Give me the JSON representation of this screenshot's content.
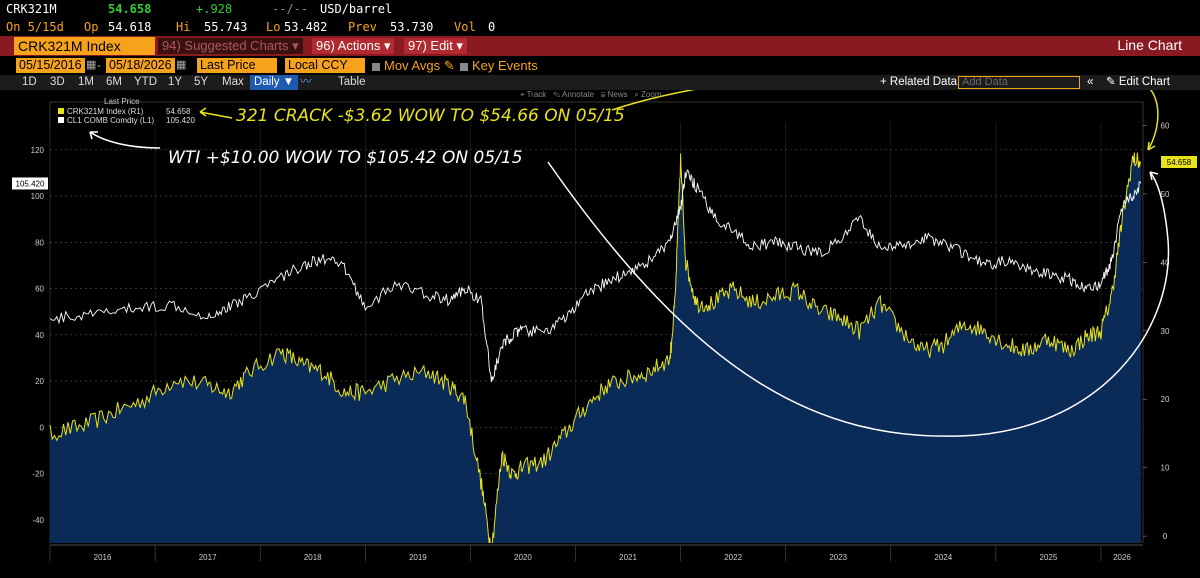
{
  "header": {
    "ticker": "CRK321M",
    "last": "54.658",
    "change": "+.928",
    "range_sep": "--/--",
    "unit": "USD/barrel",
    "on_date": "On 5/15d",
    "op_label": "Op",
    "op_value": "54.618",
    "hi_label": "Hi",
    "hi_value": "55.743",
    "lo_label": "Lo",
    "lo_value": "53.482",
    "prev_label": "Prev",
    "prev_value": "53.730",
    "vol_label": "Vol",
    "vol_value": "0"
  },
  "toolbar": {
    "index_name": "CRK321M Index",
    "suggested": "94) Suggested Charts",
    "actions": "96) Actions",
    "edit": "97) Edit",
    "line_chart": "Line Chart"
  },
  "daterow": {
    "start": "05/15/2016",
    "end": "05/18/2026",
    "field": "Last Price",
    "currency": "Local CCY",
    "mov_avgs": "Mov Avgs",
    "key_events": "Key Events"
  },
  "periods": [
    "1D",
    "3D",
    "1M",
    "6M",
    "YTD",
    "1Y",
    "5Y",
    "Max"
  ],
  "period_selected": "Daily",
  "table_label": "Table",
  "related_data": "+ Related Data",
  "add_data_placeholder": "Add Data",
  "edit_chart": "Edit Chart",
  "chart_tools": [
    "Track",
    "Annotate",
    "News",
    "Zoom"
  ],
  "colors": {
    "accent": "#f7a21b",
    "crack_series": "#e8e21a",
    "wti_series": "#ffffff",
    "area_fill": "#0a2a57",
    "redbar": "#8a1a22"
  },
  "chart_data": {
    "type": "line",
    "title": "",
    "legend_header": "Last Price",
    "x_ticks": [
      "2016",
      "2017",
      "2018",
      "2019",
      "2020",
      "2021",
      "2022",
      "2023",
      "2024",
      "2025",
      "2026"
    ],
    "xlim": [
      2016.0,
      2026.4
    ],
    "left_axis": {
      "ticks": [
        -40,
        -20,
        0,
        20,
        40,
        60,
        80,
        100,
        120
      ],
      "ylim": [
        -50,
        132
      ],
      "last_label": "105.420"
    },
    "right_axis": {
      "ticks": [
        0,
        10,
        20,
        30,
        40,
        50,
        60
      ],
      "ylim": [
        -1,
        60.5
      ],
      "last_label": "54.658"
    },
    "series": [
      {
        "name": "CRK321M Index (R1)",
        "last_value": "54.658",
        "axis": "right",
        "x": [
          2015.7,
          2016.0,
          2016.3,
          2016.6,
          2016.9,
          2017.2,
          2017.5,
          2017.7,
          2017.9,
          2018.2,
          2018.4,
          2018.6,
          2018.8,
          2019.0,
          2019.3,
          2019.6,
          2019.8,
          2019.95,
          2020.1,
          2020.2,
          2020.3,
          2020.4,
          2020.5,
          2020.7,
          2020.9,
          2021.1,
          2021.3,
          2021.5,
          2021.7,
          2021.9,
          2021.95,
          2022.0,
          2022.05,
          2022.15,
          2022.3,
          2022.5,
          2022.7,
          2022.9,
          2023.1,
          2023.3,
          2023.5,
          2023.7,
          2023.9,
          2024.1,
          2024.3,
          2024.5,
          2024.7,
          2024.9,
          2025.1,
          2025.3,
          2025.5,
          2025.7,
          2025.85,
          2026.0,
          2026.1,
          2026.2,
          2026.3,
          2026.38
        ],
        "y": [
          17,
          15,
          16,
          18,
          20,
          23,
          22,
          21,
          24,
          27,
          25,
          24,
          21,
          21,
          23,
          24,
          22,
          20,
          8,
          -2,
          12,
          9,
          10,
          11,
          15,
          19,
          22,
          23,
          24,
          26,
          35,
          55,
          40,
          34,
          34,
          36,
          34,
          35,
          36,
          33,
          32,
          30,
          34,
          30,
          27,
          28,
          31,
          30,
          28,
          27,
          29,
          27,
          29,
          30,
          35,
          46,
          55,
          54.658
        ]
      },
      {
        "name": "CL1 COMB Comdty (L1)",
        "last_value": "105.420",
        "axis": "left",
        "x": [
          2015.7,
          2016.0,
          2016.3,
          2016.6,
          2016.9,
          2017.2,
          2017.5,
          2017.7,
          2017.9,
          2018.2,
          2018.4,
          2018.6,
          2018.8,
          2019.0,
          2019.3,
          2019.6,
          2019.8,
          2019.95,
          2020.1,
          2020.2,
          2020.3,
          2020.4,
          2020.5,
          2020.7,
          2020.9,
          2021.1,
          2021.3,
          2021.5,
          2021.7,
          2021.9,
          2022.0,
          2022.05,
          2022.15,
          2022.3,
          2022.5,
          2022.7,
          2022.9,
          2023.1,
          2023.3,
          2023.5,
          2023.7,
          2023.9,
          2024.1,
          2024.3,
          2024.5,
          2024.7,
          2024.9,
          2025.1,
          2025.3,
          2025.5,
          2025.7,
          2025.85,
          2026.0,
          2026.1,
          2026.2,
          2026.3,
          2026.38
        ],
        "y": [
          50,
          47,
          48,
          50,
          52,
          53,
          48,
          52,
          57,
          65,
          70,
          73,
          69,
          52,
          62,
          57,
          55,
          60,
          55,
          20,
          35,
          40,
          42,
          41,
          47,
          57,
          63,
          67,
          72,
          80,
          95,
          110,
          104,
          92,
          85,
          78,
          80,
          78,
          75,
          80,
          90,
          78,
          78,
          82,
          80,
          75,
          70,
          72,
          68,
          66,
          64,
          60,
          62,
          72,
          96,
          100,
          105.42
        ]
      }
    ],
    "annotations": [
      {
        "text": "321 CRACK -$3.62 WOW TO $54.66 ON 05/15",
        "color": "#e8e21a"
      },
      {
        "text": "WTI +$10.00 WOW TO $105.42 ON 05/15",
        "color": "#ffffff"
      }
    ]
  }
}
